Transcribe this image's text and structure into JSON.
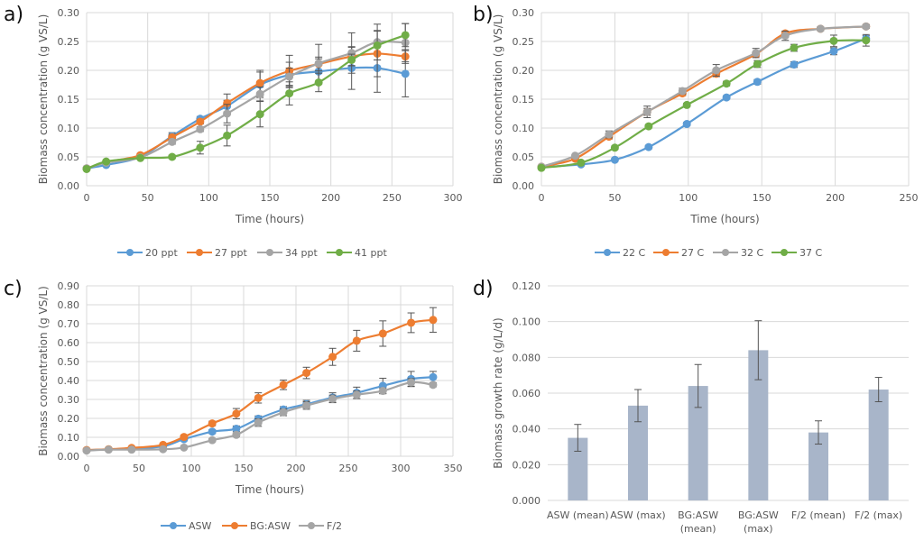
{
  "panels": [
    {
      "label": "a)"
    },
    {
      "label": "b)"
    },
    {
      "label": "c)"
    },
    {
      "label": "d)"
    }
  ],
  "colors": {
    "blue": "#5b9bd5",
    "orange": "#ed7d31",
    "gray": "#a5a5a5",
    "green": "#70ad47",
    "bar": "#a8b5c9"
  },
  "chart_data": [
    {
      "id": "a",
      "type": "line",
      "title": "",
      "xlabel": "Time (hours)",
      "ylabel": "Biomass concentration (g VS/L)",
      "xlim": [
        0,
        300
      ],
      "ylim": [
        0,
        0.3
      ],
      "xticks": [
        0,
        50,
        100,
        150,
        200,
        250,
        300
      ],
      "yticks": [
        0.0,
        0.05,
        0.1,
        0.15,
        0.2,
        0.25,
        0.3
      ],
      "ytick_labels": [
        "0.00",
        "0.05",
        "0.10",
        "0.15",
        "0.20",
        "0.25",
        "0.30"
      ],
      "grid": true,
      "legend": "bottom",
      "x": [
        0,
        16,
        44,
        70,
        93,
        115,
        142,
        166,
        190,
        217,
        238,
        261
      ],
      "series": [
        {
          "name": "20 ppt",
          "color": "blue",
          "values": [
            0.03,
            0.036,
            0.05,
            0.086,
            0.116,
            0.138,
            0.175,
            0.192,
            0.198,
            0.204,
            0.204,
            0.194
          ],
          "err": [
            0.002,
            0.002,
            0.003,
            0.006,
            0.004,
            0.01,
            0.022,
            0.022,
            0.022,
            0.037,
            0.042,
            0.04
          ]
        },
        {
          "name": "27 ppt",
          "color": "orange",
          "values": [
            0.03,
            0.041,
            0.053,
            0.084,
            0.111,
            0.143,
            0.178,
            0.199,
            0.211,
            0.224,
            0.229,
            0.224
          ],
          "err": [
            0.002,
            0.002,
            0.003,
            0.005,
            0.004,
            0.016,
            0.022,
            0.027,
            0.012,
            0.016,
            0.04,
            0.012
          ]
        },
        {
          "name": "34 ppt",
          "color": "gray",
          "values": [
            0.03,
            0.04,
            0.049,
            0.076,
            0.098,
            0.125,
            0.159,
            0.189,
            0.212,
            0.23,
            0.249,
            0.248
          ],
          "err": [
            0.002,
            0.002,
            0.003,
            0.004,
            0.004,
            0.016,
            0.012,
            0.015,
            0.033,
            0.035,
            0.031,
            0.033
          ]
        },
        {
          "name": "41 ppt",
          "color": "green",
          "values": [
            0.029,
            0.042,
            0.048,
            0.05,
            0.066,
            0.087,
            0.124,
            0.16,
            0.179,
            0.218,
            0.243,
            0.261
          ],
          "err": [
            0.002,
            0.002,
            0.002,
            0.003,
            0.011,
            0.018,
            0.022,
            0.02,
            0.016,
            0.01,
            0.025,
            0.02
          ]
        }
      ]
    },
    {
      "id": "b",
      "type": "line",
      "title": "",
      "xlabel": "Time (hours)",
      "ylabel": "Biomass concentration (g VS/L)",
      "xlim": [
        0,
        250
      ],
      "ylim": [
        0,
        0.3
      ],
      "xticks": [
        0,
        50,
        100,
        150,
        200,
        250
      ],
      "yticks": [
        0.0,
        0.05,
        0.1,
        0.15,
        0.2,
        0.25,
        0.3
      ],
      "ytick_labels": [
        "0.00",
        "0.05",
        "0.10",
        "0.15",
        "0.20",
        "0.25",
        "0.30"
      ],
      "grid": true,
      "legend": "bottom",
      "series": [
        {
          "name": "22 C",
          "color": "blue",
          "x": [
            0,
            27,
            50,
            73,
            99,
            126,
            147,
            172,
            199,
            221
          ],
          "values": [
            0.032,
            0.037,
            0.045,
            0.067,
            0.107,
            0.153,
            0.18,
            0.21,
            0.233,
            0.255
          ],
          "err": [
            0.002,
            0.002,
            0.002,
            0.003,
            0.003,
            0.003,
            0.004,
            0.005,
            0.006,
            0.005
          ]
        },
        {
          "name": "27 C",
          "color": "orange",
          "x": [
            0,
            23,
            46,
            72,
            96,
            119,
            146,
            166,
            190,
            221
          ],
          "values": [
            0.033,
            0.047,
            0.085,
            0.128,
            0.16,
            0.194,
            0.228,
            0.264,
            0.272,
            0.276
          ],
          "err": [
            0.002,
            0.002,
            0.004,
            0.006,
            0.004,
            0.005,
            0.004,
            0.004,
            0.003,
            0.003
          ]
        },
        {
          "name": "32 C",
          "color": "gray",
          "x": [
            0,
            23,
            46,
            72,
            96,
            119,
            146,
            166,
            190,
            221
          ],
          "values": [
            0.033,
            0.052,
            0.089,
            0.128,
            0.164,
            0.2,
            0.23,
            0.26,
            0.272,
            0.276
          ],
          "err": [
            0.002,
            0.002,
            0.006,
            0.01,
            0.005,
            0.01,
            0.008,
            0.008,
            0.003,
            0.003
          ]
        },
        {
          "name": "37 C",
          "color": "green",
          "x": [
            0,
            27,
            50,
            73,
            99,
            126,
            147,
            172,
            199,
            221
          ],
          "values": [
            0.031,
            0.04,
            0.066,
            0.103,
            0.14,
            0.177,
            0.211,
            0.239,
            0.251,
            0.252
          ],
          "err": [
            0.002,
            0.002,
            0.003,
            0.003,
            0.003,
            0.004,
            0.006,
            0.006,
            0.01,
            0.01
          ]
        }
      ]
    },
    {
      "id": "c",
      "type": "line",
      "title": "",
      "xlabel": "Time (hours)",
      "ylabel": "Biomass concentration (g VS/L)",
      "xlim": [
        0,
        350
      ],
      "ylim": [
        0,
        0.9
      ],
      "xticks": [
        0,
        50,
        100,
        150,
        200,
        250,
        300,
        350
      ],
      "yticks": [
        0.0,
        0.1,
        0.2,
        0.3,
        0.4,
        0.5,
        0.6,
        0.7,
        0.8,
        0.9
      ],
      "ytick_labels": [
        "0.00",
        "0.10",
        "0.20",
        "0.30",
        "0.40",
        "0.50",
        "0.60",
        "0.70",
        "0.80",
        "0.90"
      ],
      "grid": true,
      "legend": "bottom",
      "x": [
        0,
        21,
        43,
        73,
        93,
        120,
        143,
        164,
        188,
        210,
        235,
        258,
        283,
        310,
        331
      ],
      "series": [
        {
          "name": "ASW",
          "color": "blue",
          "values": [
            0.032,
            0.036,
            0.04,
            0.052,
            0.09,
            0.13,
            0.145,
            0.198,
            0.247,
            0.275,
            0.31,
            0.335,
            0.372,
            0.408,
            0.418
          ],
          "err": [
            0.003,
            0.003,
            0.003,
            0.004,
            0.008,
            0.01,
            0.015,
            0.015,
            0.015,
            0.02,
            0.025,
            0.03,
            0.04,
            0.04,
            0.03
          ]
        },
        {
          "name": "BG:ASW",
          "color": "orange",
          "values": [
            0.033,
            0.037,
            0.044,
            0.06,
            0.102,
            0.173,
            0.225,
            0.308,
            0.377,
            0.44,
            0.525,
            0.61,
            0.648,
            0.705,
            0.72
          ],
          "err": [
            0.003,
            0.003,
            0.004,
            0.005,
            0.01,
            0.012,
            0.027,
            0.027,
            0.025,
            0.03,
            0.045,
            0.055,
            0.067,
            0.052,
            0.065
          ]
        },
        {
          "name": "F/2",
          "color": "gray",
          "values": [
            0.03,
            0.035,
            0.035,
            0.037,
            0.046,
            0.085,
            0.113,
            0.178,
            0.232,
            0.268,
            0.303,
            0.325,
            0.345,
            0.39,
            0.377
          ],
          "err": [
            0.003,
            0.003,
            0.003,
            0.003,
            0.005,
            0.008,
            0.01,
            0.02,
            0.018,
            0.02,
            0.02,
            0.02,
            0.015,
            0.02,
            0.01
          ]
        }
      ]
    },
    {
      "id": "d",
      "type": "bar",
      "title": "",
      "xlabel": "",
      "ylabel": "Biomass growth rate (g/L/d)",
      "ylim": [
        0,
        0.12
      ],
      "yticks": [
        0.0,
        0.02,
        0.04,
        0.06,
        0.08,
        0.1,
        0.12
      ],
      "ytick_labels": [
        "0.000",
        "0.020",
        "0.040",
        "0.060",
        "0.080",
        "0.100",
        "0.120"
      ],
      "grid": true,
      "categories": [
        [
          "ASW (mean)"
        ],
        [
          "ASW (max)"
        ],
        [
          "BG:ASW",
          "(mean)"
        ],
        [
          "BG:ASW",
          "(max)"
        ],
        [
          "F/2 (mean)"
        ],
        [
          "F/2 (max)"
        ]
      ],
      "values": [
        0.035,
        0.053,
        0.064,
        0.084,
        0.038,
        0.062
      ],
      "err": [
        0.0075,
        0.009,
        0.012,
        0.0165,
        0.0065,
        0.0068
      ]
    }
  ]
}
